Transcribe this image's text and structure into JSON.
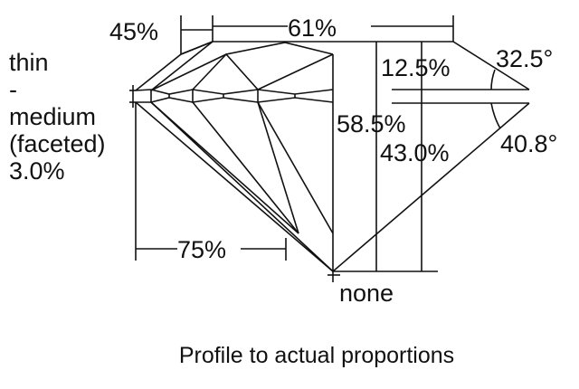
{
  "diagram": {
    "labels": {
      "lower_half": "45%",
      "table": "61%",
      "crown_height": "12.5%",
      "crown_angle": "32.5°",
      "total_depth": "58.5%",
      "pavilion_depth": "43.0%",
      "pavilion_angle": "40.8°",
      "lower_girdle": "75%",
      "culet": "none"
    },
    "girdle": [
      "thin",
      "-",
      "medium",
      "(faceted)",
      "3.0%"
    ],
    "caption": "Profile to actual proportions"
  }
}
